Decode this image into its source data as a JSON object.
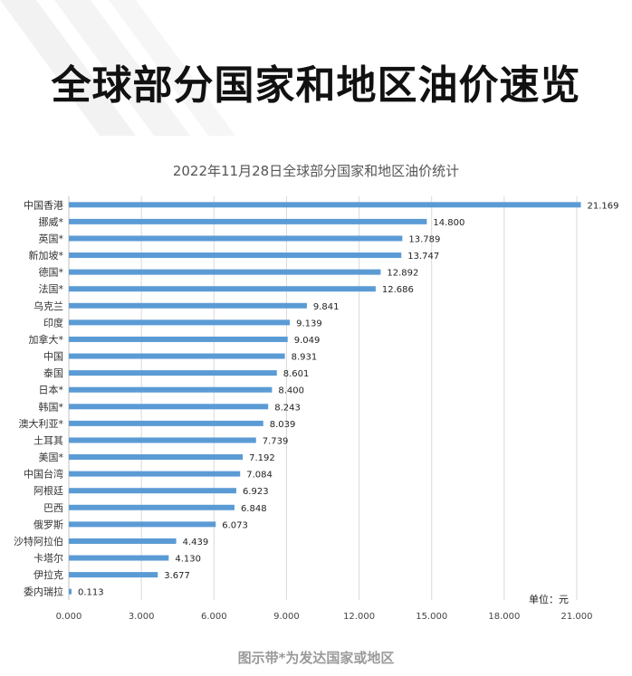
{
  "header": {
    "title": "全球部分国家和地区油价速览"
  },
  "footnote": "图示带*为发达国家或地区",
  "colors": {
    "bar": "#5b9bd5",
    "grid": "#d9d9d9",
    "axis": "#bfbfbf"
  },
  "chart_data": {
    "type": "bar",
    "orientation": "horizontal",
    "title": "2022年11月28日全球部分国家和地区油价统计",
    "unit_label": "单位：元",
    "xlim": [
      0,
      21
    ],
    "ticks": [
      "0.000",
      "3.000",
      "6.000",
      "9.000",
      "12.000",
      "15.000",
      "18.000",
      "21.000"
    ],
    "grid": true,
    "categories": [
      "中国香港",
      "挪威*",
      "英国*",
      "新加坡*",
      "德国*",
      "法国*",
      "乌克兰",
      "印度",
      "加拿大*",
      "中国",
      "泰国",
      "日本*",
      "韩国*",
      "澳大利亚*",
      "土耳其",
      "美国*",
      "中国台湾",
      "阿根廷",
      "巴西",
      "俄罗斯",
      "沙特阿拉伯",
      "卡塔尔",
      "伊拉克",
      "委内瑞拉"
    ],
    "values": [
      21.169,
      14.8,
      13.789,
      13.747,
      12.892,
      12.686,
      9.841,
      9.139,
      9.049,
      8.931,
      8.601,
      8.4,
      8.243,
      8.039,
      7.739,
      7.192,
      7.084,
      6.923,
      6.848,
      6.073,
      4.439,
      4.13,
      3.677,
      0.113
    ],
    "value_labels": [
      "21.169",
      "14.800",
      "13.789",
      "13.747",
      "12.892",
      "12.686",
      "9.841",
      "9.139",
      "9.049",
      "8.931",
      "8.601",
      "8.400",
      "8.243",
      "8.039",
      "7.739",
      "7.192",
      "7.084",
      "6.923",
      "6.848",
      "6.073",
      "4.439",
      "4.130",
      "3.677",
      "0.113"
    ]
  }
}
